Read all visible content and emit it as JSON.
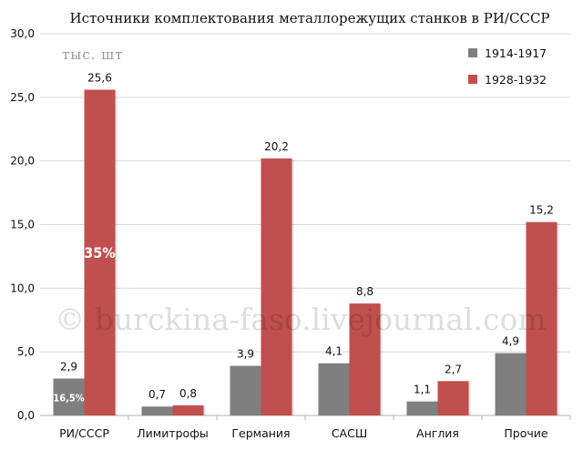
{
  "chart_data": {
    "type": "bar",
    "title": "Источники комплектования металлорежущих станков в РИ/СССР",
    "units_label": "тыс. шт",
    "categories": [
      "РИ/СССР",
      "Лимитрофы",
      "Германия",
      "САСШ",
      "Англия",
      "Прочие"
    ],
    "series": [
      {
        "name": "1914-1917",
        "values": [
          2.9,
          0.7,
          3.9,
          4.1,
          1.1,
          4.9
        ],
        "labels": [
          "2,9",
          "0,7",
          "3,9",
          "4,1",
          "1,1",
          "4,9"
        ]
      },
      {
        "name": "1928-1932",
        "values": [
          25.6,
          0.8,
          20.2,
          8.8,
          2.7,
          15.2
        ],
        "labels": [
          "25,6",
          "0,8",
          "20,2",
          "8,8",
          "2,7",
          "15,2"
        ]
      }
    ],
    "ylim": [
      0,
      30
    ],
    "yticks": [
      0,
      5,
      10,
      15,
      20,
      25,
      30
    ],
    "ytick_labels": [
      "0,0",
      "5,0",
      "10,0",
      "15,0",
      "20,0",
      "25,0",
      "30,0"
    ],
    "grid": true,
    "legend_position": "top-right",
    "colors": {
      "series1": "#7f7f7f",
      "series2": "#c0504d"
    },
    "annotations": [
      {
        "category": "РИ/СССР",
        "series": "1914-1917",
        "text": "16,5%"
      },
      {
        "category": "РИ/СССР",
        "series": "1928-1932",
        "text": "35%"
      }
    ]
  },
  "watermark": "© burckina-faso.livejournal.com"
}
